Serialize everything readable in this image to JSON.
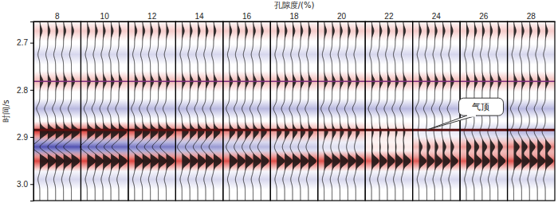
{
  "chart_data": {
    "type": "wiggle",
    "x_label": "孔隙度/(%)",
    "y_label": "时间/s",
    "categories": [
      "8",
      "10",
      "12",
      "14",
      "16",
      "18",
      "20",
      "22",
      "24",
      "26",
      "28"
    ],
    "times": [
      2.675,
      2.725,
      2.782,
      2.84,
      2.889,
      2.921,
      2.951,
      2.99
    ],
    "amplitudes": [
      [
        0.25,
        -0.2,
        0.35,
        -0.35,
        0.9,
        -0.85,
        0.9,
        -0.2
      ],
      [
        0.25,
        -0.2,
        0.35,
        -0.35,
        0.85,
        -0.75,
        0.9,
        -0.2
      ],
      [
        0.25,
        -0.2,
        0.35,
        -0.35,
        0.8,
        -0.65,
        0.9,
        -0.2
      ],
      [
        0.25,
        -0.2,
        0.35,
        -0.35,
        0.7,
        -0.5,
        0.85,
        -0.2
      ],
      [
        0.25,
        -0.2,
        0.35,
        -0.35,
        0.6,
        -0.35,
        0.85,
        -0.2
      ],
      [
        0.25,
        -0.2,
        0.35,
        -0.35,
        0.5,
        -0.25,
        0.85,
        -0.2
      ],
      [
        0.25,
        -0.2,
        0.35,
        -0.35,
        0.4,
        -0.15,
        0.85,
        -0.2
      ],
      [
        0.25,
        -0.2,
        0.35,
        -0.35,
        0.2,
        0.1,
        0.8,
        -0.2
      ],
      [
        0.25,
        -0.2,
        0.35,
        -0.35,
        -0.1,
        0.35,
        0.8,
        -0.2
      ],
      [
        0.25,
        -0.2,
        0.35,
        -0.35,
        -0.25,
        0.5,
        0.8,
        -0.2
      ],
      [
        0.25,
        -0.2,
        0.35,
        -0.35,
        -0.35,
        0.6,
        0.85,
        -0.2
      ]
    ],
    "ylim": [
      2.655,
      3.035
    ],
    "yticks": [
      2.7,
      2.8,
      2.9,
      {
        "value": 3,
        "label": "3.0"
      }
    ],
    "reference_lines": [
      {
        "y": 2.782,
        "color": "#7b2d7b"
      },
      {
        "y": 2.885,
        "color": "#5a1010"
      }
    ],
    "annotations": [
      {
        "text": "气顶",
        "x": "24",
        "y": 2.885
      }
    ]
  }
}
